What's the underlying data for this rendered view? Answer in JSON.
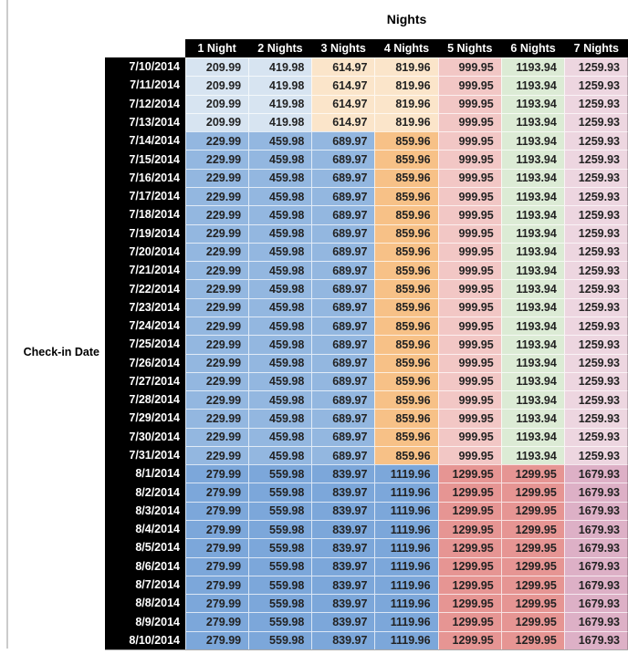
{
  "title": "Nights",
  "row_axis_label": "Check-in Date",
  "palette": {
    "header_bg": "#000000",
    "header_text": "#ffffff",
    "date_bg": "#000000",
    "date_text": "#ffffff",
    "value_text": "#222222",
    "light_blue": "#D7E4F1",
    "medium_blue": "#93B7E0",
    "deep_blue": "#7CA7DA",
    "light_orange": "#FBE5CA",
    "medium_orange": "#F7C187",
    "light_red": "#F2C7C5",
    "medium_red": "#E69593",
    "light_green": "#DCEBD5",
    "light_magenta": "#EDD6E0",
    "medium_magenta": "#DDB0C6"
  },
  "chart_data": {
    "type": "table",
    "title": "Nights",
    "row_label": "Check-in Date",
    "columns": [
      "1 Night",
      "2 Nights",
      "3 Nights",
      "4 Nights",
      "5 Nights",
      "6 Nights",
      "7 Nights"
    ],
    "bands": {
      "early": [
        "light_blue",
        "light_blue",
        "light_orange",
        "light_orange",
        "light_red",
        "light_green",
        "light_magenta"
      ],
      "mid": [
        "medium_blue",
        "medium_blue",
        "medium_blue",
        "medium_orange",
        "light_red",
        "light_green",
        "light_magenta"
      ],
      "late": [
        "deep_blue",
        "deep_blue",
        "deep_blue",
        "deep_blue",
        "medium_red",
        "medium_red",
        "medium_magenta"
      ]
    },
    "rows": [
      {
        "date": "7/10/2014",
        "band": "early",
        "values": [
          209.99,
          419.98,
          614.97,
          819.96,
          999.95,
          1193.94,
          1259.93
        ]
      },
      {
        "date": "7/11/2014",
        "band": "early",
        "values": [
          209.99,
          419.98,
          614.97,
          819.96,
          999.95,
          1193.94,
          1259.93
        ]
      },
      {
        "date": "7/12/2014",
        "band": "early",
        "values": [
          209.99,
          419.98,
          614.97,
          819.96,
          999.95,
          1193.94,
          1259.93
        ]
      },
      {
        "date": "7/13/2014",
        "band": "early",
        "values": [
          209.99,
          419.98,
          614.97,
          819.96,
          999.95,
          1193.94,
          1259.93
        ]
      },
      {
        "date": "7/14/2014",
        "band": "mid",
        "values": [
          229.99,
          459.98,
          689.97,
          859.96,
          999.95,
          1193.94,
          1259.93
        ]
      },
      {
        "date": "7/15/2014",
        "band": "mid",
        "values": [
          229.99,
          459.98,
          689.97,
          859.96,
          999.95,
          1193.94,
          1259.93
        ]
      },
      {
        "date": "7/16/2014",
        "band": "mid",
        "values": [
          229.99,
          459.98,
          689.97,
          859.96,
          999.95,
          1193.94,
          1259.93
        ]
      },
      {
        "date": "7/17/2014",
        "band": "mid",
        "values": [
          229.99,
          459.98,
          689.97,
          859.96,
          999.95,
          1193.94,
          1259.93
        ]
      },
      {
        "date": "7/18/2014",
        "band": "mid",
        "values": [
          229.99,
          459.98,
          689.97,
          859.96,
          999.95,
          1193.94,
          1259.93
        ]
      },
      {
        "date": "7/19/2014",
        "band": "mid",
        "values": [
          229.99,
          459.98,
          689.97,
          859.96,
          999.95,
          1193.94,
          1259.93
        ]
      },
      {
        "date": "7/20/2014",
        "band": "mid",
        "values": [
          229.99,
          459.98,
          689.97,
          859.96,
          999.95,
          1193.94,
          1259.93
        ]
      },
      {
        "date": "7/21/2014",
        "band": "mid",
        "values": [
          229.99,
          459.98,
          689.97,
          859.96,
          999.95,
          1193.94,
          1259.93
        ]
      },
      {
        "date": "7/22/2014",
        "band": "mid",
        "values": [
          229.99,
          459.98,
          689.97,
          859.96,
          999.95,
          1193.94,
          1259.93
        ]
      },
      {
        "date": "7/23/2014",
        "band": "mid",
        "values": [
          229.99,
          459.98,
          689.97,
          859.96,
          999.95,
          1193.94,
          1259.93
        ]
      },
      {
        "date": "7/24/2014",
        "band": "mid",
        "values": [
          229.99,
          459.98,
          689.97,
          859.96,
          999.95,
          1193.94,
          1259.93
        ]
      },
      {
        "date": "7/25/2014",
        "band": "mid",
        "values": [
          229.99,
          459.98,
          689.97,
          859.96,
          999.95,
          1193.94,
          1259.93
        ]
      },
      {
        "date": "7/26/2014",
        "band": "mid",
        "values": [
          229.99,
          459.98,
          689.97,
          859.96,
          999.95,
          1193.94,
          1259.93
        ]
      },
      {
        "date": "7/27/2014",
        "band": "mid",
        "values": [
          229.99,
          459.98,
          689.97,
          859.96,
          999.95,
          1193.94,
          1259.93
        ]
      },
      {
        "date": "7/28/2014",
        "band": "mid",
        "values": [
          229.99,
          459.98,
          689.97,
          859.96,
          999.95,
          1193.94,
          1259.93
        ]
      },
      {
        "date": "7/29/2014",
        "band": "mid",
        "values": [
          229.99,
          459.98,
          689.97,
          859.96,
          999.95,
          1193.94,
          1259.93
        ]
      },
      {
        "date": "7/30/2014",
        "band": "mid",
        "values": [
          229.99,
          459.98,
          689.97,
          859.96,
          999.95,
          1193.94,
          1259.93
        ]
      },
      {
        "date": "7/31/2014",
        "band": "mid",
        "values": [
          229.99,
          459.98,
          689.97,
          859.96,
          999.95,
          1193.94,
          1259.93
        ]
      },
      {
        "date": "8/1/2014",
        "band": "late",
        "values": [
          279.99,
          559.98,
          839.97,
          1119.96,
          1299.95,
          1299.95,
          1679.93
        ]
      },
      {
        "date": "8/2/2014",
        "band": "late",
        "values": [
          279.99,
          559.98,
          839.97,
          1119.96,
          1299.95,
          1299.95,
          1679.93
        ]
      },
      {
        "date": "8/3/2014",
        "band": "late",
        "values": [
          279.99,
          559.98,
          839.97,
          1119.96,
          1299.95,
          1299.95,
          1679.93
        ]
      },
      {
        "date": "8/4/2014",
        "band": "late",
        "values": [
          279.99,
          559.98,
          839.97,
          1119.96,
          1299.95,
          1299.95,
          1679.93
        ]
      },
      {
        "date": "8/5/2014",
        "band": "late",
        "values": [
          279.99,
          559.98,
          839.97,
          1119.96,
          1299.95,
          1299.95,
          1679.93
        ]
      },
      {
        "date": "8/6/2014",
        "band": "late",
        "values": [
          279.99,
          559.98,
          839.97,
          1119.96,
          1299.95,
          1299.95,
          1679.93
        ]
      },
      {
        "date": "8/7/2014",
        "band": "late",
        "values": [
          279.99,
          559.98,
          839.97,
          1119.96,
          1299.95,
          1299.95,
          1679.93
        ]
      },
      {
        "date": "8/8/2014",
        "band": "late",
        "values": [
          279.99,
          559.98,
          839.97,
          1119.96,
          1299.95,
          1299.95,
          1679.93
        ]
      },
      {
        "date": "8/9/2014",
        "band": "late",
        "values": [
          279.99,
          559.98,
          839.97,
          1119.96,
          1299.95,
          1299.95,
          1679.93
        ]
      },
      {
        "date": "8/10/2014",
        "band": "late",
        "values": [
          279.99,
          559.98,
          839.97,
          1119.96,
          1299.95,
          1299.95,
          1679.93
        ]
      }
    ]
  }
}
